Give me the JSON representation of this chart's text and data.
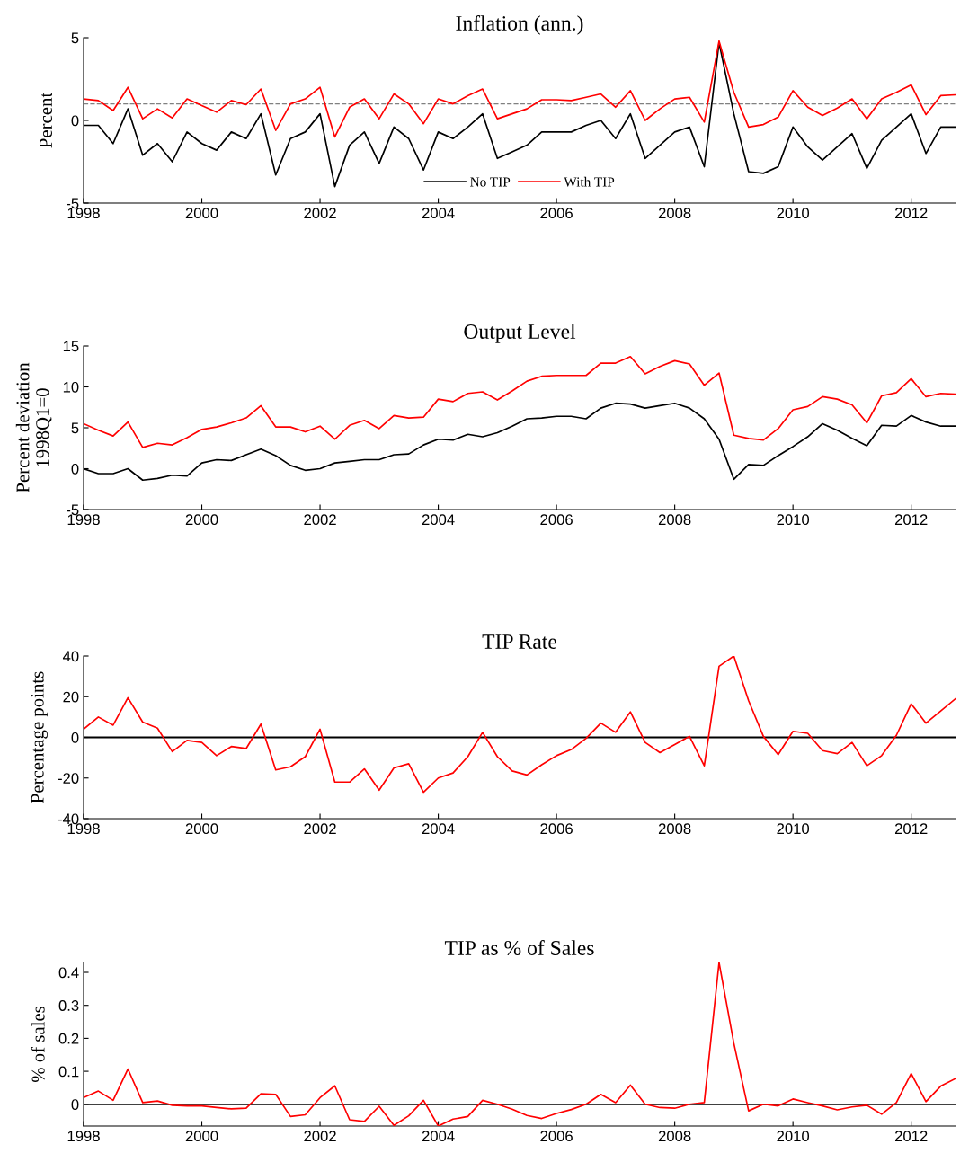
{
  "chart_data": [
    {
      "type": "line",
      "title": "Inflation (ann.)",
      "ylabel": "Percent",
      "x": [
        1998,
        1998.25,
        1998.5,
        1998.75,
        1999,
        1999.25,
        1999.5,
        1999.75,
        2000,
        2000.25,
        2000.5,
        2000.75,
        2001,
        2001.25,
        2001.5,
        2001.75,
        2002,
        2002.25,
        2002.5,
        2002.75,
        2003,
        2003.25,
        2003.5,
        2003.75,
        2004,
        2004.25,
        2004.5,
        2004.75,
        2005,
        2005.25,
        2005.5,
        2005.75,
        2006,
        2006.25,
        2006.5,
        2006.75,
        2007,
        2007.25,
        2007.5,
        2007.75,
        2008,
        2008.25,
        2008.5,
        2008.75,
        2009,
        2009.25,
        2009.5,
        2009.75,
        2010,
        2010.25,
        2010.5,
        2010.75,
        2011,
        2011.25,
        2011.5,
        2011.75,
        2012,
        2012.25,
        2012.5,
        2012.75
      ],
      "series": [
        {
          "name": "No TIP",
          "color": "#000000",
          "values": [
            -0.3,
            -0.3,
            -1.4,
            0.7,
            -2.1,
            -1.4,
            -2.5,
            -0.7,
            -1.4,
            -1.8,
            -0.7,
            -1.1,
            0.4,
            -3.3,
            -1.1,
            -0.7,
            0.4,
            -4.0,
            -1.5,
            -0.7,
            -2.6,
            -0.4,
            -1.1,
            -3.0,
            -0.7,
            -1.1,
            -0.4,
            0.4,
            -2.3,
            -1.9,
            -1.5,
            -0.7,
            -0.7,
            -0.7,
            -0.3,
            0.0,
            -1.1,
            0.4,
            -2.3,
            -1.5,
            -0.7,
            -0.4,
            -2.8,
            4.7,
            0.4,
            -3.1,
            -3.2,
            -2.8,
            -0.4,
            -1.6,
            -2.4,
            -1.6,
            -0.8,
            -2.9,
            -1.2,
            -0.4,
            0.4,
            -2.0,
            -0.4,
            -0.4
          ]
        },
        {
          "name": "With TIP",
          "color": "#ff0000",
          "values": [
            1.3,
            1.2,
            0.6,
            2.0,
            0.1,
            0.7,
            0.15,
            1.3,
            0.9,
            0.5,
            1.2,
            0.95,
            1.9,
            -0.6,
            1.0,
            1.3,
            2.0,
            -1.0,
            0.8,
            1.3,
            0.1,
            1.6,
            1.0,
            -0.2,
            1.3,
            1.0,
            1.5,
            1.9,
            0.1,
            0.4,
            0.7,
            1.25,
            1.25,
            1.2,
            1.4,
            1.6,
            0.8,
            1.8,
            0.0,
            0.7,
            1.3,
            1.4,
            -0.1,
            4.8,
            1.7,
            -0.4,
            -0.25,
            0.2,
            1.8,
            0.8,
            0.3,
            0.75,
            1.3,
            0.1,
            1.3,
            1.7,
            2.15,
            0.35,
            1.5,
            1.55
          ]
        }
      ],
      "ref_lines": [
        {
          "axis": "y",
          "value": 1.0,
          "color": "#808080",
          "line_style": "dashed"
        }
      ],
      "xlim": [
        1998,
        2012.75
      ],
      "xticks": [
        1998,
        2000,
        2002,
        2004,
        2006,
        2008,
        2010,
        2012
      ],
      "ylim": [
        -5,
        5
      ],
      "yticks": [
        -5,
        0,
        5
      ],
      "legend": "bottom"
    },
    {
      "type": "line",
      "title": "Output Level",
      "ylabel": "Percent deviation\n1998Q1=0",
      "x": [
        1998,
        1998.25,
        1998.5,
        1998.75,
        1999,
        1999.25,
        1999.5,
        1999.75,
        2000,
        2000.25,
        2000.5,
        2000.75,
        2001,
        2001.25,
        2001.5,
        2001.75,
        2002,
        2002.25,
        2002.5,
        2002.75,
        2003,
        2003.25,
        2003.5,
        2003.75,
        2004,
        2004.25,
        2004.5,
        2004.75,
        2005,
        2005.25,
        2005.5,
        2005.75,
        2006,
        2006.25,
        2006.5,
        2006.75,
        2007,
        2007.25,
        2007.5,
        2007.75,
        2008,
        2008.25,
        2008.5,
        2008.75,
        2009,
        2009.25,
        2009.5,
        2009.75,
        2010,
        2010.25,
        2010.5,
        2010.75,
        2011,
        2011.25,
        2011.5,
        2011.75,
        2012,
        2012.25,
        2012.5,
        2012.75
      ],
      "series": [
        {
          "color": "#000000",
          "values": [
            0,
            -0.6,
            -0.6,
            0.0,
            -1.4,
            -1.2,
            -0.8,
            -0.9,
            0.7,
            1.1,
            1.0,
            1.7,
            2.4,
            1.6,
            0.4,
            -0.2,
            0.0,
            0.7,
            0.9,
            1.1,
            1.1,
            1.7,
            1.8,
            2.9,
            3.6,
            3.5,
            4.2,
            3.9,
            4.4,
            5.2,
            6.1,
            6.2,
            6.4,
            6.4,
            6.1,
            7.4,
            8.0,
            7.9,
            7.4,
            7.7,
            8.0,
            7.4,
            6.1,
            3.6,
            -1.3,
            0.5,
            0.4,
            1.6,
            2.7,
            3.9,
            5.5,
            4.7,
            3.7,
            2.8,
            5.3,
            5.2,
            6.5,
            5.7,
            5.2,
            5.2
          ]
        },
        {
          "color": "#ff0000",
          "values": [
            5.5,
            4.7,
            4.0,
            5.7,
            2.6,
            3.1,
            2.9,
            3.8,
            4.8,
            5.1,
            5.6,
            6.2,
            7.7,
            5.1,
            5.1,
            4.5,
            5.2,
            3.6,
            5.3,
            5.9,
            4.9,
            6.5,
            6.2,
            6.3,
            8.5,
            8.2,
            9.2,
            9.4,
            8.4,
            9.5,
            10.7,
            11.3,
            11.4,
            11.4,
            11.4,
            12.9,
            12.9,
            13.7,
            11.6,
            12.5,
            13.2,
            12.8,
            10.2,
            11.7,
            4.1,
            3.7,
            3.5,
            4.9,
            7.2,
            7.6,
            8.8,
            8.5,
            7.8,
            5.6,
            8.9,
            9.3,
            11.0,
            8.8,
            9.2,
            9.1
          ]
        }
      ],
      "xlim": [
        1998,
        2012.75
      ],
      "xticks": [
        1998,
        2000,
        2002,
        2004,
        2006,
        2008,
        2010,
        2012
      ],
      "ylim": [
        -5,
        15
      ],
      "yticks": [
        -5,
        0,
        5,
        10,
        15
      ]
    },
    {
      "type": "line",
      "title": "TIP Rate",
      "ylabel": "Percentage points",
      "x": [
        1998,
        1998.25,
        1998.5,
        1998.75,
        1999,
        1999.25,
        1999.5,
        1999.75,
        2000,
        2000.25,
        2000.5,
        2000.75,
        2001,
        2001.25,
        2001.5,
        2001.75,
        2002,
        2002.25,
        2002.5,
        2002.75,
        2003,
        2003.25,
        2003.5,
        2003.75,
        2004,
        2004.25,
        2004.5,
        2004.75,
        2005,
        2005.25,
        2005.5,
        2005.75,
        2006,
        2006.25,
        2006.5,
        2006.75,
        2007,
        2007.25,
        2007.5,
        2007.75,
        2008,
        2008.25,
        2008.5,
        2008.75,
        2009,
        2009.25,
        2009.5,
        2009.75,
        2010,
        2010.25,
        2010.5,
        2010.75,
        2011,
        2011.25,
        2011.5,
        2011.75,
        2012,
        2012.25,
        2012.5,
        2012.75
      ],
      "series": [
        {
          "color": "#ff0000",
          "values": [
            4,
            10,
            6,
            19.5,
            7.5,
            4.5,
            -7,
            -1.5,
            -2.5,
            -9,
            -4.5,
            -5.5,
            6.5,
            -16,
            -14.5,
            -9.5,
            4,
            -22,
            -22,
            -15.5,
            -26,
            -15,
            -13,
            -27,
            -20,
            -17.5,
            -9.5,
            2.5,
            -9.5,
            -16.5,
            -18.5,
            -13.5,
            -9,
            -6,
            -0.5,
            7,
            2.5,
            12.5,
            -2.5,
            -7.5,
            -3.5,
            0.5,
            -14,
            35,
            40,
            18,
            0.5,
            -8.5,
            3,
            2,
            -6.5,
            -8,
            -2.5,
            -14,
            -9,
            1,
            16.5,
            7,
            13,
            19
          ]
        }
      ],
      "ref_lines": [
        {
          "axis": "y",
          "value": 0,
          "color": "#000000",
          "line_style": "solid"
        }
      ],
      "xlim": [
        1998,
        2012.75
      ],
      "xticks": [
        1998,
        2000,
        2002,
        2004,
        2006,
        2008,
        2010,
        2012
      ],
      "ylim": [
        -40,
        40
      ],
      "yticks": [
        -40,
        -20,
        0,
        20,
        40
      ]
    },
    {
      "type": "line",
      "title": "TIP as % of Sales",
      "ylabel": "% of sales",
      "x": [
        1998,
        1998.25,
        1998.5,
        1998.75,
        1999,
        1999.25,
        1999.5,
        1999.75,
        2000,
        2000.25,
        2000.5,
        2000.75,
        2001,
        2001.25,
        2001.5,
        2001.75,
        2002,
        2002.25,
        2002.5,
        2002.75,
        2003,
        2003.25,
        2003.5,
        2003.75,
        2004,
        2004.25,
        2004.5,
        2004.75,
        2005,
        2005.25,
        2005.5,
        2005.75,
        2006,
        2006.25,
        2006.5,
        2006.75,
        2007,
        2007.25,
        2007.5,
        2007.75,
        2008,
        2008.25,
        2008.5,
        2008.75,
        2009,
        2009.25,
        2009.5,
        2009.75,
        2010,
        2010.25,
        2010.5,
        2010.75,
        2011,
        2011.25,
        2011.5,
        2011.75,
        2012,
        2012.25,
        2012.5,
        2012.75
      ],
      "series": [
        {
          "color": "#ff0000",
          "values": [
            0.02,
            0.04,
            0.012,
            0.107,
            0.005,
            0.01,
            -0.003,
            -0.005,
            -0.005,
            -0.01,
            -0.014,
            -0.012,
            0.032,
            0.03,
            -0.037,
            -0.032,
            0.02,
            0.056,
            -0.047,
            -0.052,
            -0.006,
            -0.064,
            -0.035,
            0.012,
            -0.066,
            -0.045,
            -0.037,
            0.012,
            0.0,
            -0.015,
            -0.034,
            -0.043,
            -0.028,
            -0.016,
            0.0,
            0.03,
            0.005,
            0.058,
            0.0,
            -0.01,
            -0.012,
            0.0,
            0.005,
            0.43,
            0.185,
            -0.02,
            0.0,
            -0.005,
            0.016,
            0.005,
            -0.005,
            -0.017,
            -0.008,
            -0.003,
            -0.03,
            0.005,
            0.093,
            0.008,
            0.055,
            0.078
          ]
        }
      ],
      "ref_lines": [
        {
          "axis": "y",
          "value": 0,
          "color": "#000000",
          "line_style": "solid"
        }
      ],
      "xlim": [
        1998,
        2012.75
      ],
      "xticks": [
        1998,
        2000,
        2002,
        2004,
        2006,
        2008,
        2010,
        2012
      ],
      "ylim": [
        -0.066,
        0.43
      ],
      "yticks": [
        0,
        0.1,
        0.2,
        0.3,
        0.4
      ]
    }
  ]
}
